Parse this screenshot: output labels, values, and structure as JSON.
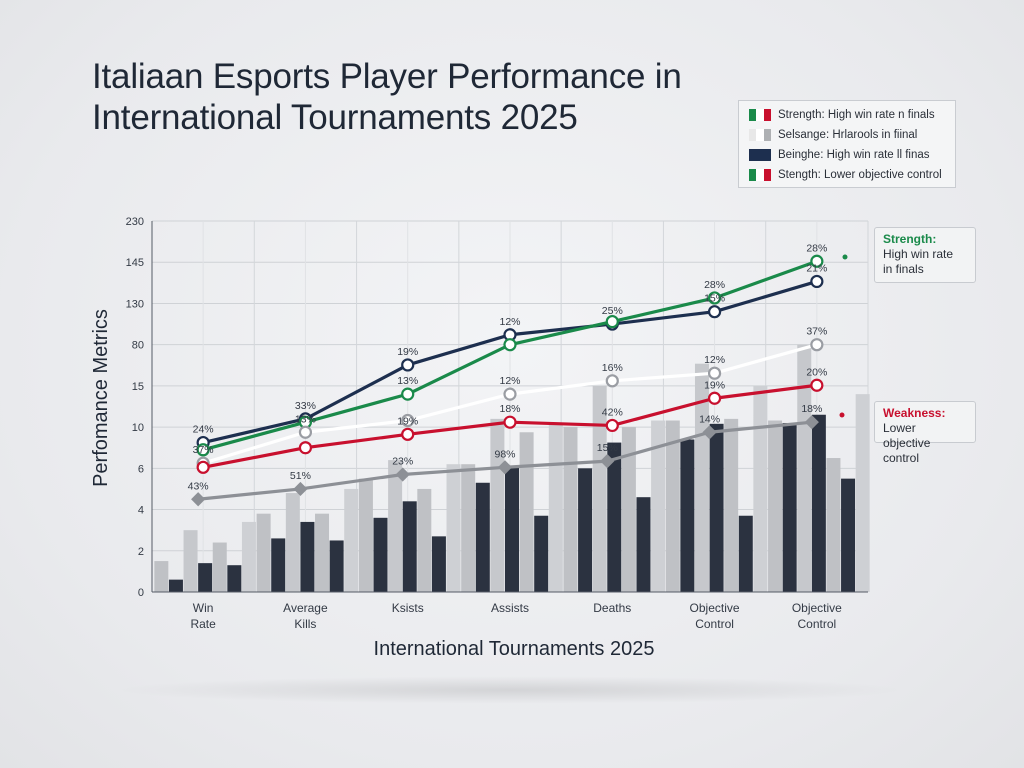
{
  "title": "Italiaan Esports Player Performance in International Tournaments 2025",
  "legend": {
    "entries": [
      {
        "label": "Strength: High win rate n finals",
        "colors": [
          "#1a8a4a",
          "#ffffff",
          "#c8102e"
        ]
      },
      {
        "label": "Selsange: Hrlarools in fiinal",
        "colors": [
          "#e8e8e8",
          "#ffffff",
          "#aeb0b3"
        ]
      },
      {
        "label": "Beinghe: High win rate ll finas",
        "colors": [
          "#1d2f4f"
        ]
      },
      {
        "label": "Stength: Lower objective control",
        "colors": [
          "#1a8a4a",
          "#ffffff",
          "#c8102e"
        ]
      }
    ]
  },
  "callouts": {
    "strength": {
      "highlight": "Strength:",
      "line1": "High win rate",
      "line2": "in finals",
      "highlight_color": "#1a8a4a"
    },
    "weakness": {
      "highlight": "Weakness:",
      "rest": "Lower",
      "line2": "objective control",
      "highlight_color": "#c8102e"
    }
  },
  "chart_data": {
    "type": "bar+line",
    "xlabel": "International Tournaments 2025",
    "ylabel": "Perfomance Metrics",
    "y_ticks": [
      "0",
      "2",
      "4",
      "6",
      "10",
      "15",
      "80",
      "130",
      "145",
      "230"
    ],
    "categories": [
      "Win Rate",
      "Average Kills",
      "Ksists",
      "Assists",
      "Deaths",
      "Objective Control",
      "Objective Control"
    ],
    "bar_series": [
      {
        "color": "#bfc1c5",
        "values": [
          1.5,
          3.8,
          5.5,
          6.4,
          10,
          10.8,
          10.8
        ]
      },
      {
        "color": "#2b3240",
        "values": [
          0.6,
          2.6,
          3.6,
          5.3,
          6,
          8.8,
          10.5
        ]
      },
      {
        "color": "#c6c8cc",
        "values": [
          3,
          4.8,
          6.8,
          11,
          15,
          50,
          80
        ]
      },
      {
        "color": "#2b3240",
        "values": [
          1.4,
          3.4,
          4.4,
          6.2,
          8.5,
          10.4,
          11.5
        ]
      },
      {
        "color": "#bfc1c5",
        "values": [
          2.4,
          3.8,
          5,
          9.5,
          10,
          11,
          7
        ]
      },
      {
        "color": "#2b3240",
        "values": [
          1.3,
          2.5,
          2.7,
          3.7,
          4.6,
          3.7,
          5.5
        ]
      },
      {
        "color": "#ced0d4",
        "values": [
          3.4,
          5,
          6.4,
          10.5,
          10.8,
          15,
          14
        ]
      }
    ],
    "line_series": [
      {
        "color": "#1d2f4f",
        "values": [
          8.5,
          11,
          48,
          92,
          105,
          120,
          138
        ],
        "labels": [
          "24%",
          "33%",
          "19%",
          "12%",
          "25%",
          "15%",
          "21%"
        ]
      },
      {
        "color": "#1a8a4a",
        "values": [
          7.8,
          10.6,
          14,
          80,
          108,
          132,
          147
        ],
        "labels": [
          "",
          "",
          "13%",
          "",
          "",
          "28%",
          "28%"
        ]
      },
      {
        "color": "#ffffff",
        "values": [
          6.5,
          9.5,
          10.8,
          14,
          23,
          35,
          80
        ],
        "labels": [
          "37%",
          "13%",
          "",
          "12%",
          "16%",
          "12%",
          "37%"
        ]
      },
      {
        "color": "#c8102e",
        "values": [
          6.1,
          8,
          9.3,
          10.6,
          10.2,
          13.5,
          16
        ],
        "labels": [
          "",
          "",
          "19%",
          "18%",
          "42%",
          "19%",
          "20%"
        ]
      },
      {
        "color": "#8d9096",
        "values": [
          4.5,
          5,
          5.7,
          6.1,
          6.7,
          9.5,
          10.6
        ],
        "labels": [
          "43%",
          "51%",
          "23%",
          "98%",
          "15%",
          "14%",
          "18%"
        ]
      }
    ]
  }
}
